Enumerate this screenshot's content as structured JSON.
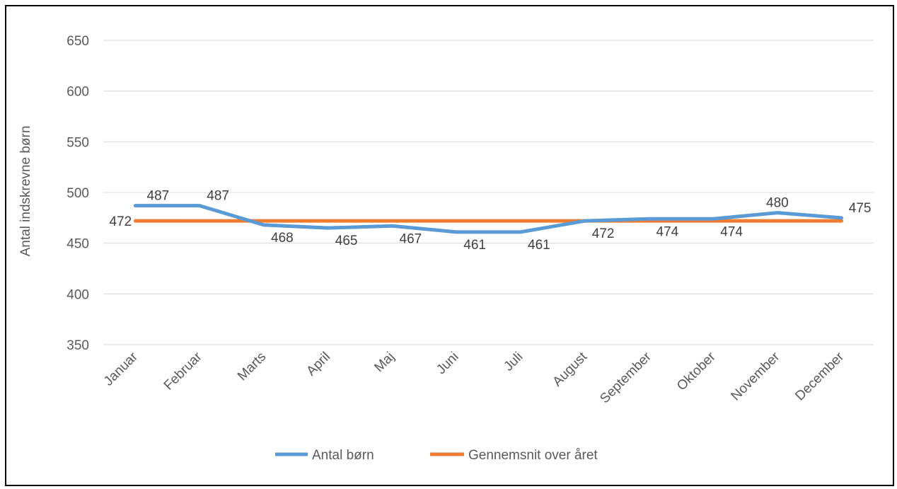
{
  "chart_data": {
    "type": "line",
    "title": "",
    "xlabel": "",
    "ylabel": "Antal indskrevne børn",
    "ylim": [
      350,
      650
    ],
    "yticks": [
      "350",
      "400",
      "450",
      "500",
      "550",
      "600",
      "650"
    ],
    "grid": true,
    "legend_position": "bottom",
    "categories": [
      "Januar",
      "Februar",
      "Marts",
      "April",
      "Maj",
      "Juni",
      "Juli",
      "August",
      "September",
      "Oktober",
      "November",
      "December"
    ],
    "series": [
      {
        "name": "Antal børn",
        "color": "#5b9bd5",
        "values": [
          487,
          487,
          468,
          465,
          467,
          461,
          461,
          472,
          474,
          474,
          480,
          475
        ],
        "labels": [
          "487",
          "487",
          "468",
          "465",
          "467",
          "461",
          "461",
          "472",
          "474",
          "474",
          "480",
          "475"
        ]
      },
      {
        "name": "Gennemsnit over året",
        "color": "#ed7d31",
        "values": [
          472,
          472,
          472,
          472,
          472,
          472,
          472,
          472,
          472,
          472,
          472,
          472
        ],
        "labels": [
          "472"
        ]
      }
    ]
  }
}
